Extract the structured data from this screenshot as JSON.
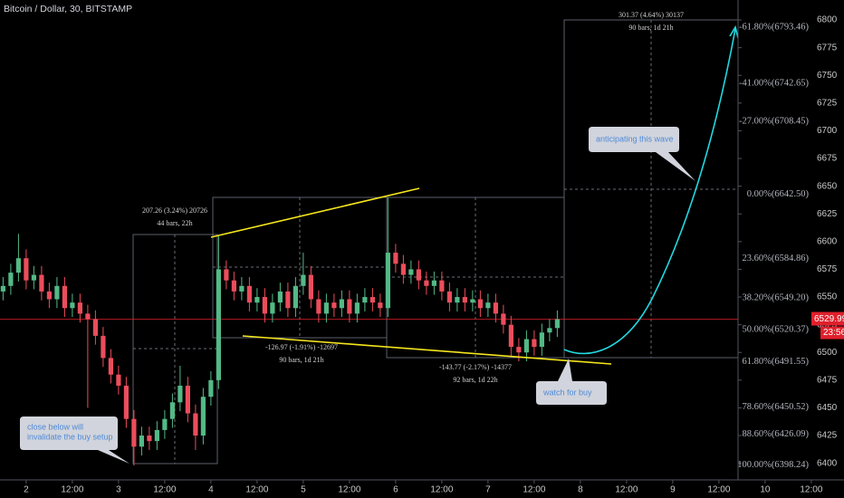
{
  "chart_data": {
    "type": "candlestick",
    "title": "Bitcoin / Dollar, 30, BITSTAMP",
    "x": [
      -6,
      -4,
      -2,
      0,
      2,
      4,
      6,
      8,
      10,
      12,
      14,
      16,
      18,
      20,
      22,
      24,
      26,
      28,
      30,
      32,
      34,
      36,
      38,
      40,
      42,
      44,
      46,
      48,
      50,
      52,
      54,
      56,
      58,
      60,
      62,
      64,
      66,
      68,
      70,
      72,
      74,
      76,
      78,
      80,
      82,
      84,
      86,
      88,
      90,
      92,
      94,
      96,
      98,
      100,
      102,
      104,
      106,
      108,
      110,
      112,
      114,
      116,
      118,
      120,
      122,
      124,
      126,
      128,
      130,
      132,
      134,
      136,
      138
    ],
    "open": [
      6555,
      6560,
      6572,
      6585,
      6565,
      6570,
      6555,
      6548,
      6560,
      6540,
      6545,
      6535,
      6530,
      6515,
      6495,
      6480,
      6470,
      6440,
      6415,
      6425,
      6420,
      6430,
      6440,
      6455,
      6470,
      6445,
      6425,
      6460,
      6475,
      6575,
      6565,
      6555,
      6560,
      6545,
      6550,
      6535,
      6545,
      6555,
      6540,
      6560,
      6570,
      6548,
      6535,
      6545,
      6540,
      6548,
      6535,
      6545,
      6550,
      6545,
      6540,
      6590,
      6580,
      6570,
      6575,
      6565,
      6560,
      6565,
      6555,
      6545,
      6550,
      6545,
      6548,
      6540,
      6545,
      6535,
      6525,
      6505,
      6500,
      6512,
      6505,
      6518,
      6522
    ],
    "high": [
      6568,
      6580,
      6607,
      6593,
      6578,
      6578,
      6563,
      6568,
      6568,
      6553,
      6553,
      6543,
      6538,
      6523,
      6503,
      6488,
      6478,
      6448,
      6433,
      6433,
      6438,
      6448,
      6463,
      6488,
      6478,
      6453,
      6468,
      6483,
      6605,
      6583,
      6573,
      6568,
      6568,
      6558,
      6558,
      6553,
      6563,
      6563,
      6568,
      6590,
      6578,
      6556,
      6553,
      6553,
      6556,
      6556,
      6553,
      6558,
      6558,
      6553,
      6640,
      6598,
      6588,
      6583,
      6583,
      6573,
      6573,
      6573,
      6563,
      6558,
      6558,
      6556,
      6556,
      6553,
      6553,
      6543,
      6533,
      6513,
      6520,
      6520,
      6526,
      6530,
      6538
    ],
    "low": [
      6547,
      6552,
      6564,
      6557,
      6557,
      6547,
      6540,
      6540,
      6532,
      6532,
      6527,
      6450,
      6507,
      6487,
      6472,
      6462,
      6432,
      6398,
      6407,
      6412,
      6412,
      6422,
      6432,
      6447,
      6437,
      6412,
      6417,
      6452,
      6467,
      6557,
      6547,
      6547,
      6537,
      6537,
      6527,
      6527,
      6537,
      6532,
      6532,
      6552,
      6540,
      6527,
      6527,
      6532,
      6532,
      6527,
      6527,
      6537,
      6537,
      6532,
      6532,
      6572,
      6562,
      6562,
      6557,
      6552,
      6552,
      6547,
      6537,
      6537,
      6537,
      6537,
      6532,
      6532,
      6527,
      6517,
      6497,
      6492,
      6492,
      6497,
      6497,
      6510,
      6514
    ],
    "close": [
      6560,
      6572,
      6585,
      6565,
      6570,
      6555,
      6548,
      6560,
      6540,
      6545,
      6535,
      6530,
      6515,
      6495,
      6480,
      6470,
      6440,
      6415,
      6425,
      6420,
      6430,
      6440,
      6455,
      6470,
      6445,
      6425,
      6460,
      6475,
      6575,
      6565,
      6555,
      6560,
      6545,
      6550,
      6535,
      6545,
      6555,
      6540,
      6560,
      6570,
      6548,
      6535,
      6545,
      6540,
      6548,
      6535,
      6545,
      6550,
      6545,
      6540,
      6590,
      6580,
      6570,
      6575,
      6565,
      6560,
      6565,
      6555,
      6545,
      6550,
      6545,
      6548,
      6540,
      6545,
      6535,
      6525,
      6505,
      6500,
      6512,
      6505,
      6518,
      6522,
      6530
    ],
    "up_color": "#53b987",
    "down_color": "#eb4d5c",
    "xlim": [
      -6.8,
      212.5
    ],
    "ylim": [
      6385,
      6818
    ],
    "xticks": [
      {
        "value": 0,
        "label": "2"
      },
      {
        "value": 12,
        "label": "12:00"
      },
      {
        "value": 24,
        "label": "3"
      },
      {
        "value": 36,
        "label": "12:00"
      },
      {
        "value": 48,
        "label": "4"
      },
      {
        "value": 60,
        "label": "12:00"
      },
      {
        "value": 72,
        "label": "5"
      },
      {
        "value": 84,
        "label": "12:00"
      },
      {
        "value": 96,
        "label": "6"
      },
      {
        "value": 108,
        "label": "12:00"
      },
      {
        "value": 120,
        "label": "7"
      },
      {
        "value": 132,
        "label": "12:00"
      },
      {
        "value": 144,
        "label": "8"
      },
      {
        "value": 156,
        "label": "12:00"
      },
      {
        "value": 168,
        "label": "9"
      },
      {
        "value": 180,
        "label": "12:00"
      },
      {
        "value": 192,
        "label": "10"
      },
      {
        "value": 204,
        "label": "12:00"
      }
    ],
    "yticks": [
      6400,
      6425,
      6450,
      6475,
      6500,
      6525,
      6550,
      6575,
      6600,
      6625,
      6650,
      6675,
      6700,
      6725,
      6750,
      6775,
      6800
    ],
    "last_price": 6529.99,
    "last_price_color": "#e0202c",
    "countdown": "23:56",
    "fib_levels": [
      {
        "value": 6793.46,
        "label": "-61.80%(6793.46)"
      },
      {
        "value": 6742.65,
        "label": "-41.00%(6742.65)"
      },
      {
        "value": 6708.45,
        "label": "-27.00%(6708.45)"
      },
      {
        "value": 6642.5,
        "label": "0.00%(6642.50)"
      },
      {
        "value": 6584.86,
        "label": "23.60%(6584.86)"
      },
      {
        "value": 6549.2,
        "label": "38.20%(6549.20)"
      },
      {
        "value": 6520.37,
        "label": "50.00%(6520.37)"
      },
      {
        "value": 6491.55,
        "label": "61.80%(6491.55)"
      },
      {
        "value": 6450.52,
        "label": "78.60%(6450.52)"
      },
      {
        "value": 6426.09,
        "label": "88.60%(6426.09)"
      },
      {
        "value": 6398.24,
        "label": "100.00%(6398.24)"
      }
    ]
  },
  "measures": [
    {
      "text": "207.26 (3.24%) 20726",
      "detail": "44 bars, 22h"
    },
    {
      "text": "-126.97 (-1.91%) -12697",
      "detail": "90 bars, 1d 21h"
    },
    {
      "text": "-143.77 (-2.17%) -14377",
      "detail": "92 bars, 1d 22h"
    },
    {
      "text": "301.37 (4.64%) 30137",
      "detail": "90 bars, 1d 21h"
    }
  ],
  "callouts": [
    {
      "lines": [
        "close below will",
        "invalidate the buy setup"
      ]
    },
    {
      "lines": [
        "anticipating this wave"
      ]
    },
    {
      "lines": [
        "watch for buy"
      ]
    }
  ]
}
